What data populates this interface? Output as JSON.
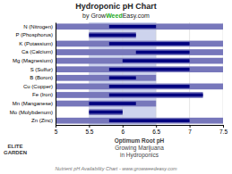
{
  "chart_data": {
    "type": "bar",
    "orientation": "horizontal",
    "title": "Hydroponic pH Chart",
    "subtitle": [
      "by Grow",
      {
        "text": "Weed",
        "color": "#22aa22"
      },
      "Easy.com"
    ],
    "xlabel": [
      "Optimum Root pH",
      "Growing Marijuana",
      "in Hydroponics"
    ],
    "annotations": [
      "ELITE",
      "GARDEN"
    ],
    "footer": "Nutrient pH Availability Chart  -  www.growweedeasy.com",
    "categories": [
      "N (Nitrogen)",
      "P (Phosphorus)",
      "K (Potassium)",
      "Ca (Calcium)",
      "Mg (Magnesium)",
      "S (Sulfur)",
      "B (Boron)",
      "Cu (Copper)",
      "Fe (Iron)",
      "Mn (Manganese)",
      "Mo (Molybdenum)",
      "Zn (Zinc)"
    ],
    "series": [
      {
        "color": "#7777bb",
        "values": [
          [
            5.0,
            7.5
          ],
          [
            5.5,
            6.2
          ],
          [
            5.0,
            7.5
          ],
          [
            5.0,
            7.5
          ],
          [
            5.0,
            7.5
          ],
          [
            5.0,
            7.5
          ],
          [
            5.0,
            6.5
          ],
          [
            5.0,
            7.5
          ],
          [
            5.0,
            7.2
          ],
          [
            5.0,
            6.5
          ],
          [
            5.5,
            6.0
          ],
          [
            5.0,
            7.5
          ]
        ]
      },
      {
        "color": "#00007f",
        "values": [
          [
            5.8,
            6.5
          ],
          [
            5.5,
            6.2
          ],
          [
            5.8,
            7.0
          ],
          [
            6.2,
            7.0
          ],
          [
            6.0,
            7.0
          ],
          [
            5.8,
            7.0
          ],
          [
            5.8,
            6.2
          ],
          [
            5.8,
            7.0
          ],
          [
            5.8,
            7.2
          ],
          [
            5.5,
            6.2
          ],
          [
            5.5,
            6.0
          ],
          [
            5.8,
            7.0
          ]
        ]
      }
    ],
    "optimal_region": {
      "range": [
        5.5,
        6.5
      ],
      "color": "#c0c8e8"
    },
    "xlim": [
      5.0,
      7.5
    ],
    "xticks": [
      5,
      5.5,
      6,
      6.5,
      7,
      7.5
    ],
    "grid": true
  }
}
